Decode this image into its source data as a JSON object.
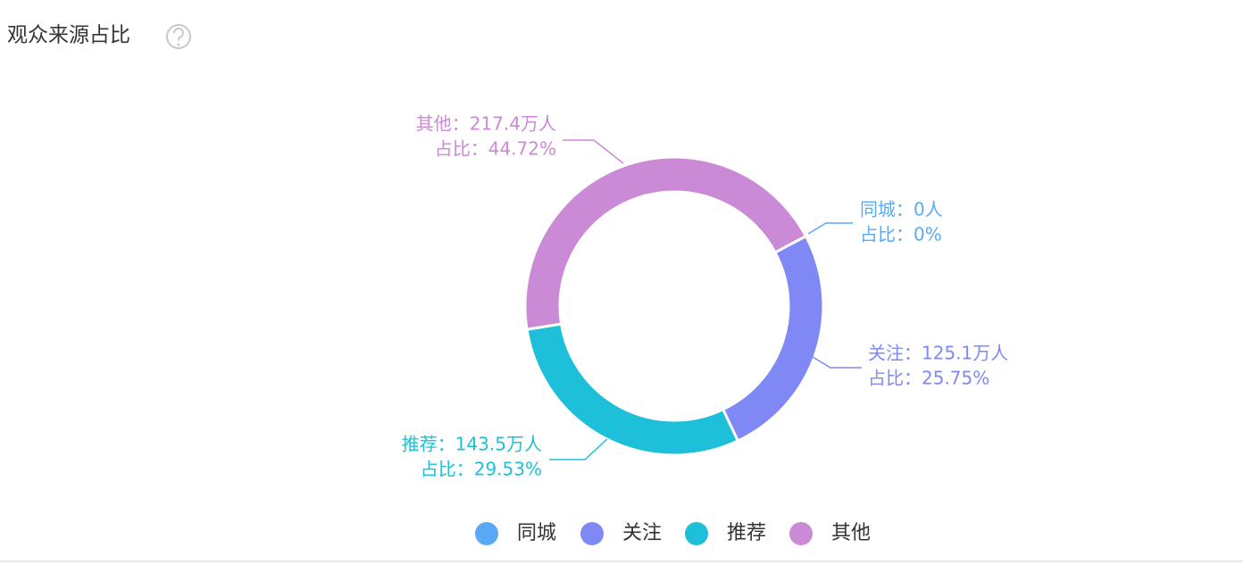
{
  "title": "观众来源占比",
  "chart_data": {
    "type": "donut",
    "categories": [
      "同城",
      "关注",
      "推荐",
      "其他"
    ],
    "values": [
      0,
      125.1,
      143.5,
      217.4
    ],
    "value_labels": [
      "同城：0人",
      "关注：125.1万人",
      "推荐：143.5万人",
      "其他：217.4万人"
    ],
    "percents": [
      0,
      25.75,
      29.53,
      44.72
    ],
    "percent_labels": [
      "占比：0%",
      "占比：25.75%",
      "占比：29.53%",
      "占比：44.72%"
    ],
    "colors": [
      "#5aa9f5",
      "#8088f5",
      "#1ec0d9",
      "#cb8ad6"
    ],
    "legend": "bottom"
  }
}
